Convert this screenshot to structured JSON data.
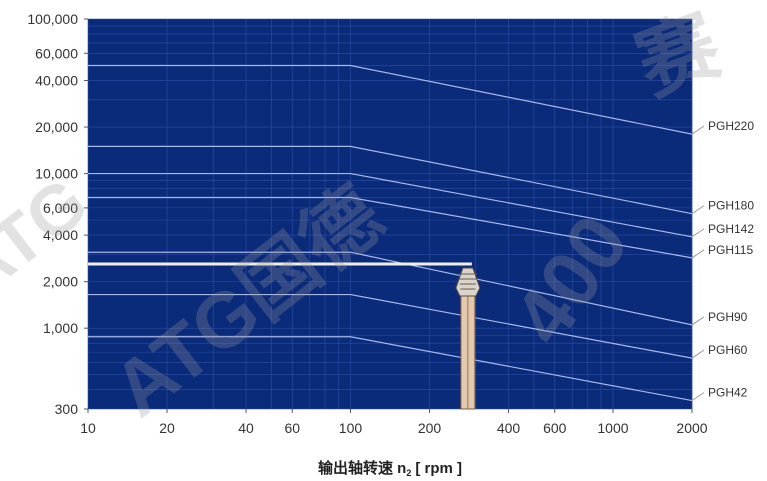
{
  "chart_data": {
    "type": "line",
    "xscale": "log",
    "yscale": "log",
    "xlim": [
      10,
      2000
    ],
    "ylim": [
      300,
      100000
    ],
    "xlabel_main": "输出轴转速 n",
    "xlabel_sub": "2",
    "xlabel_unit": "[ rpm ]",
    "xticks": [
      {
        "value": 10,
        "label": "10"
      },
      {
        "value": 20,
        "label": "20"
      },
      {
        "value": 40,
        "label": "40"
      },
      {
        "value": 60,
        "label": "60"
      },
      {
        "value": 100,
        "label": "100"
      },
      {
        "value": 200,
        "label": "200"
      },
      {
        "value": 400,
        "label": "400"
      },
      {
        "value": 600,
        "label": "600"
      },
      {
        "value": 1000,
        "label": "1000"
      },
      {
        "value": 2000,
        "label": "2000"
      }
    ],
    "yticks": [
      {
        "value": 100000,
        "label": "100,000"
      },
      {
        "value": 60000,
        "label": "60,000"
      },
      {
        "value": 40000,
        "label": "40,000"
      },
      {
        "value": 20000,
        "label": "20,000"
      },
      {
        "value": 10000,
        "label": "10,000"
      },
      {
        "value": 6000,
        "label": "6,000"
      },
      {
        "value": 4000,
        "label": "4,000"
      },
      {
        "value": 2000,
        "label": "2,000"
      },
      {
        "value": 1000,
        "label": "1,000"
      },
      {
        "value": 300,
        "label": "300"
      }
    ],
    "series": [
      {
        "name": "PGH220",
        "x": [
          10,
          100,
          2000
        ],
        "y": [
          50000,
          50000,
          18000
        ]
      },
      {
        "name": "PGH180",
        "x": [
          10,
          100,
          2000
        ],
        "y": [
          15000,
          15000,
          5500
        ]
      },
      {
        "name": "PGH142",
        "x": [
          10,
          100,
          2000
        ],
        "y": [
          10000,
          10000,
          3900
        ]
      },
      {
        "name": "PGH115",
        "x": [
          10,
          100,
          2000
        ],
        "y": [
          7000,
          7000,
          2850
        ]
      },
      {
        "name": "PGH90",
        "x": [
          10,
          100,
          2000
        ],
        "y": [
          3100,
          3100,
          1050
        ]
      },
      {
        "name": "PGH60",
        "x": [
          10,
          100,
          2000
        ],
        "y": [
          1650,
          1650,
          640
        ]
      },
      {
        "name": "PGH42",
        "x": [
          10,
          100,
          2000
        ],
        "y": [
          880,
          880,
          340
        ]
      }
    ],
    "highlight": {
      "x": 280,
      "y": 2600
    },
    "colors": {
      "plot_background": "#0a2a7a",
      "grid": "#2e4fa6",
      "series_line": "#a8b8e8",
      "highlight_line": "#f2ede6",
      "highlight_pin": "#e2c9b0"
    }
  },
  "watermark": {
    "text_main": "ATG国德",
    "text_main_2": "ATG",
    "text_top": "赛",
    "text_right": "400"
  }
}
